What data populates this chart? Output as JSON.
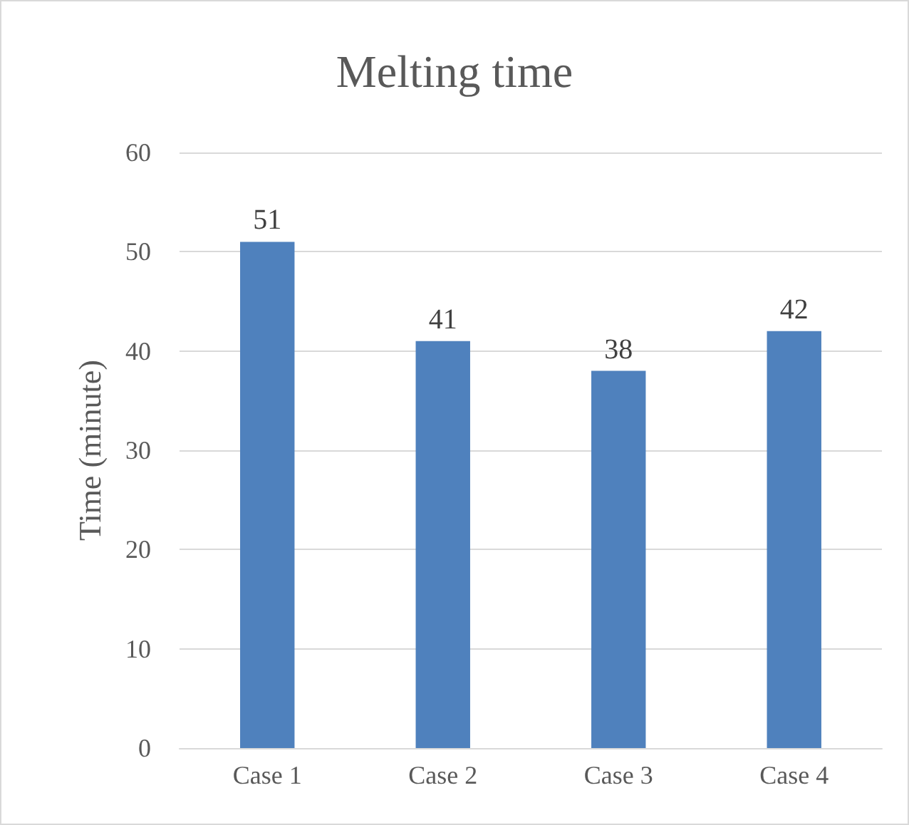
{
  "chart_data": {
    "type": "bar",
    "title": "Melting time",
    "ylabel": "Time (minute)",
    "categories": [
      "Case 1",
      "Case 2",
      "Case 3",
      "Case 4"
    ],
    "values": [
      51,
      41,
      38,
      42
    ],
    "color": "#4f81bd",
    "ylim": [
      0,
      60
    ],
    "yticks": [
      0,
      10,
      20,
      30,
      40,
      50,
      60
    ],
    "grid": "y",
    "data_labels": true
  }
}
